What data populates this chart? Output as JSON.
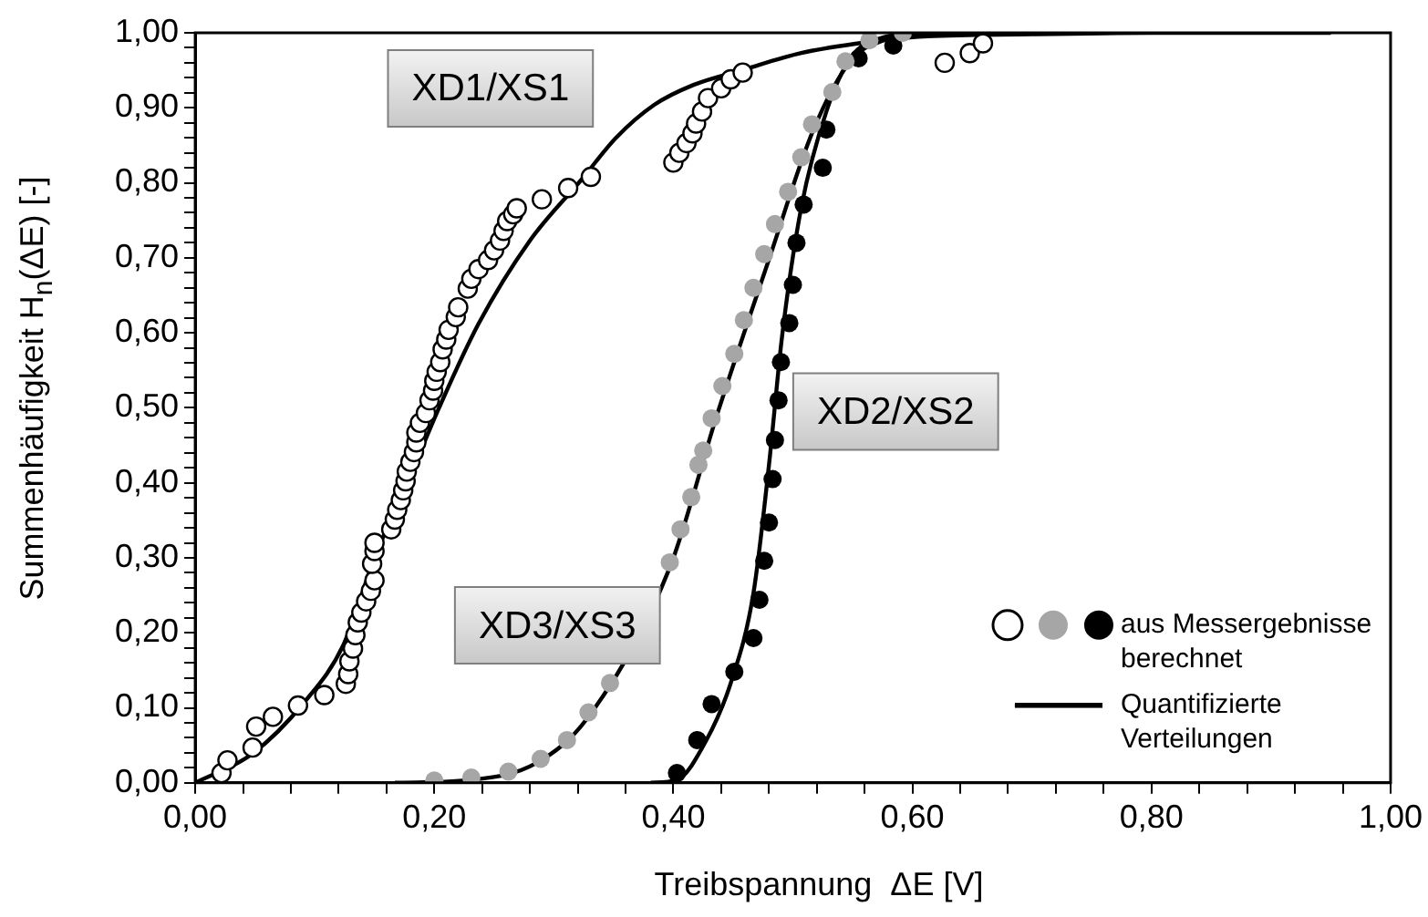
{
  "chart_data": {
    "type": "scatter",
    "xlabel": "Treibspannung  ΔE [V]",
    "ylabel": "Summenhäufigkeit  H$_{n}$(ΔE) [-]",
    "xlim": [
      0,
      1
    ],
    "ylim": [
      0,
      1
    ],
    "xticks": [
      {
        "value": 0,
        "label": "0,00"
      },
      {
        "value": 0.04,
        "label": null
      },
      {
        "value": 0.08,
        "label": null
      },
      {
        "value": 0.12,
        "label": null
      },
      {
        "value": 0.16,
        "label": null
      },
      {
        "value": 0.2,
        "label": "0,20"
      },
      {
        "value": 0.24,
        "label": null
      },
      {
        "value": 0.28,
        "label": null
      },
      {
        "value": 0.32,
        "label": null
      },
      {
        "value": 0.36,
        "label": null
      },
      {
        "value": 0.4,
        "label": "0,40"
      },
      {
        "value": 0.44,
        "label": null
      },
      {
        "value": 0.48,
        "label": null
      },
      {
        "value": 0.52,
        "label": null
      },
      {
        "value": 0.56,
        "label": null
      },
      {
        "value": 0.6,
        "label": "0,60"
      },
      {
        "value": 0.64,
        "label": null
      },
      {
        "value": 0.68,
        "label": null
      },
      {
        "value": 0.72,
        "label": null
      },
      {
        "value": 0.76,
        "label": null
      },
      {
        "value": 0.8,
        "label": "0,80"
      },
      {
        "value": 0.84,
        "label": null
      },
      {
        "value": 0.88,
        "label": null
      },
      {
        "value": 0.92,
        "label": null
      },
      {
        "value": 0.96,
        "label": null
      },
      {
        "value": 1,
        "label": "1,00"
      }
    ],
    "yticks": [
      {
        "value": 0,
        "label": "0,00"
      },
      {
        "value": 0.02,
        "label": null
      },
      {
        "value": 0.04,
        "label": null
      },
      {
        "value": 0.06,
        "label": null
      },
      {
        "value": 0.08,
        "label": null
      },
      {
        "value": 0.1,
        "label": "0,10"
      },
      {
        "value": 0.12,
        "label": null
      },
      {
        "value": 0.14,
        "label": null
      },
      {
        "value": 0.16,
        "label": null
      },
      {
        "value": 0.18,
        "label": null
      },
      {
        "value": 0.2,
        "label": "0,20"
      },
      {
        "value": 0.22,
        "label": null
      },
      {
        "value": 0.24,
        "label": null
      },
      {
        "value": 0.26,
        "label": null
      },
      {
        "value": 0.28,
        "label": null
      },
      {
        "value": 0.3,
        "label": "0,30"
      },
      {
        "value": 0.32,
        "label": null
      },
      {
        "value": 0.34,
        "label": null
      },
      {
        "value": 0.36,
        "label": null
      },
      {
        "value": 0.38,
        "label": null
      },
      {
        "value": 0.4,
        "label": "0,40"
      },
      {
        "value": 0.42,
        "label": null
      },
      {
        "value": 0.44,
        "label": null
      },
      {
        "value": 0.46,
        "label": null
      },
      {
        "value": 0.48,
        "label": null
      },
      {
        "value": 0.5,
        "label": "0,50"
      },
      {
        "value": 0.52,
        "label": null
      },
      {
        "value": 0.54,
        "label": null
      },
      {
        "value": 0.56,
        "label": null
      },
      {
        "value": 0.58,
        "label": null
      },
      {
        "value": 0.6,
        "label": "0,60"
      },
      {
        "value": 0.62,
        "label": null
      },
      {
        "value": 0.64,
        "label": null
      },
      {
        "value": 0.66,
        "label": null
      },
      {
        "value": 0.68,
        "label": null
      },
      {
        "value": 0.7,
        "label": "0,70"
      },
      {
        "value": 0.72,
        "label": null
      },
      {
        "value": 0.74,
        "label": null
      },
      {
        "value": 0.76,
        "label": null
      },
      {
        "value": 0.78,
        "label": null
      },
      {
        "value": 0.8,
        "label": "0,80"
      },
      {
        "value": 0.82,
        "label": null
      },
      {
        "value": 0.84,
        "label": null
      },
      {
        "value": 0.86,
        "label": null
      },
      {
        "value": 0.88,
        "label": null
      },
      {
        "value": 0.9,
        "label": "0,90"
      },
      {
        "value": 0.92,
        "label": null
      },
      {
        "value": 0.94,
        "label": null
      },
      {
        "value": 0.96,
        "label": null
      },
      {
        "value": 0.98,
        "label": null
      },
      {
        "value": 1,
        "label": "1,00"
      }
    ],
    "legend": "bottom right",
    "series": [
      {
        "type": "scatter",
        "color": "#ffffff",
        "x": [
          0.022,
          0.027,
          0.048,
          0.051,
          0.065,
          0.086,
          0.108,
          0.126,
          0.128,
          0.129,
          0.132,
          0.134,
          0.136,
          0.139,
          0.143,
          0.147,
          0.15,
          0.148,
          0.15,
          0.15,
          0.164,
          0.167,
          0.169,
          0.172,
          0.174,
          0.176,
          0.177,
          0.18,
          0.183,
          0.185,
          0.185,
          0.188,
          0.193,
          0.196,
          0.199,
          0.2,
          0.202,
          0.205,
          0.207,
          0.21,
          0.212,
          0.218,
          0.22,
          0.228,
          0.231,
          0.237,
          0.245,
          0.25,
          0.255,
          0.258,
          0.261,
          0.266,
          0.269,
          0.29,
          0.312,
          0.331,
          0.4,
          0.405,
          0.411,
          0.416,
          0.419,
          0.424,
          0.429,
          0.44,
          0.448,
          0.458,
          0.627,
          0.648,
          0.659
        ],
        "values": [
          0.013,
          0.03,
          0.047,
          0.075,
          0.088,
          0.103,
          0.117,
          0.132,
          0.145,
          0.162,
          0.179,
          0.197,
          0.214,
          0.227,
          0.242,
          0.256,
          0.27,
          0.292,
          0.309,
          0.32,
          0.338,
          0.351,
          0.364,
          0.377,
          0.39,
          0.402,
          0.415,
          0.428,
          0.441,
          0.454,
          0.467,
          0.48,
          0.493,
          0.51,
          0.523,
          0.536,
          0.548,
          0.561,
          0.578,
          0.591,
          0.604,
          0.621,
          0.634,
          0.659,
          0.672,
          0.685,
          0.697,
          0.71,
          0.723,
          0.736,
          0.749,
          0.758,
          0.766,
          0.778,
          0.793,
          0.808,
          0.827,
          0.84,
          0.853,
          0.866,
          0.879,
          0.895,
          0.913,
          0.926,
          0.938,
          0.947,
          0.96,
          0.973,
          0.986
        ]
      },
      {
        "type": "scatter",
        "color": "#a6a6a6",
        "x": [
          0.2,
          0.231,
          0.262,
          0.289,
          0.311,
          0.329,
          0.347,
          0.397,
          0.406,
          0.415,
          0.421,
          0.425,
          0.432,
          0.441,
          0.451,
          0.459,
          0.467,
          0.476,
          0.485,
          0.496,
          0.507,
          0.516,
          0.533,
          0.544,
          0.564,
          0.592
        ],
        "values": [
          0.003,
          0.007,
          0.015,
          0.032,
          0.057,
          0.094,
          0.133,
          0.294,
          0.338,
          0.381,
          0.424,
          0.443,
          0.486,
          0.529,
          0.572,
          0.617,
          0.66,
          0.705,
          0.745,
          0.788,
          0.834,
          0.878,
          0.921,
          0.962,
          0.99,
          1.0
        ]
      },
      {
        "name": "aus Messergebnisse berechnet",
        "type": "scatter",
        "color": "#000000",
        "x": [
          0.403,
          0.42,
          0.432,
          0.451,
          0.467,
          0.472,
          0.476,
          0.48,
          0.483,
          0.485,
          0.488,
          0.49,
          0.497,
          0.5,
          0.503,
          0.509,
          0.525,
          0.528,
          0.555,
          0.584
        ],
        "values": [
          0.013,
          0.057,
          0.105,
          0.148,
          0.193,
          0.244,
          0.296,
          0.347,
          0.405,
          0.457,
          0.51,
          0.561,
          0.613,
          0.664,
          0.72,
          0.771,
          0.82,
          0.871,
          0.966,
          0.983
        ]
      },
      {
        "name": "Quantifizierte Verteilungen",
        "type": "line",
        "color": "#000000",
        "x": [
          0,
          0.048,
          0.091,
          0.124,
          0.151,
          0.177,
          0.204,
          0.237,
          0.28,
          0.323,
          0.352,
          0.384,
          0.416,
          0.459,
          0.507,
          0.555,
          0.598,
          0.7,
          0.8,
          0.95
        ],
        "values": [
          0,
          0.039,
          0.107,
          0.184,
          0.304,
          0.398,
          0.5,
          0.612,
          0.723,
          0.804,
          0.86,
          0.904,
          0.93,
          0.951,
          0.973,
          0.986,
          0.994,
          0.998,
          1.0,
          1.0
        ]
      },
      {
        "type": "line",
        "color": "#000000",
        "x": [
          0.167,
          0.231,
          0.285,
          0.328,
          0.397,
          0.437,
          0.48,
          0.517,
          0.549,
          0.576,
          0.608,
          0.7
        ],
        "values": [
          0,
          0.004,
          0.026,
          0.086,
          0.287,
          0.493,
          0.698,
          0.87,
          0.964,
          0.99,
          0.998,
          1.0
        ]
      },
      {
        "type": "line",
        "color": "#000000",
        "x": [
          0.381,
          0.403,
          0.427,
          0.448,
          0.467,
          0.48,
          0.491,
          0.507,
          0.528,
          0.549,
          0.576,
          0.608
        ],
        "values": [
          0,
          0.004,
          0.055,
          0.133,
          0.253,
          0.424,
          0.596,
          0.767,
          0.895,
          0.968,
          0.994,
          1.0
        ]
      }
    ],
    "annotations": [
      "XD1/XS1",
      "XD2/XS2",
      "XD3/XS3"
    ]
  }
}
